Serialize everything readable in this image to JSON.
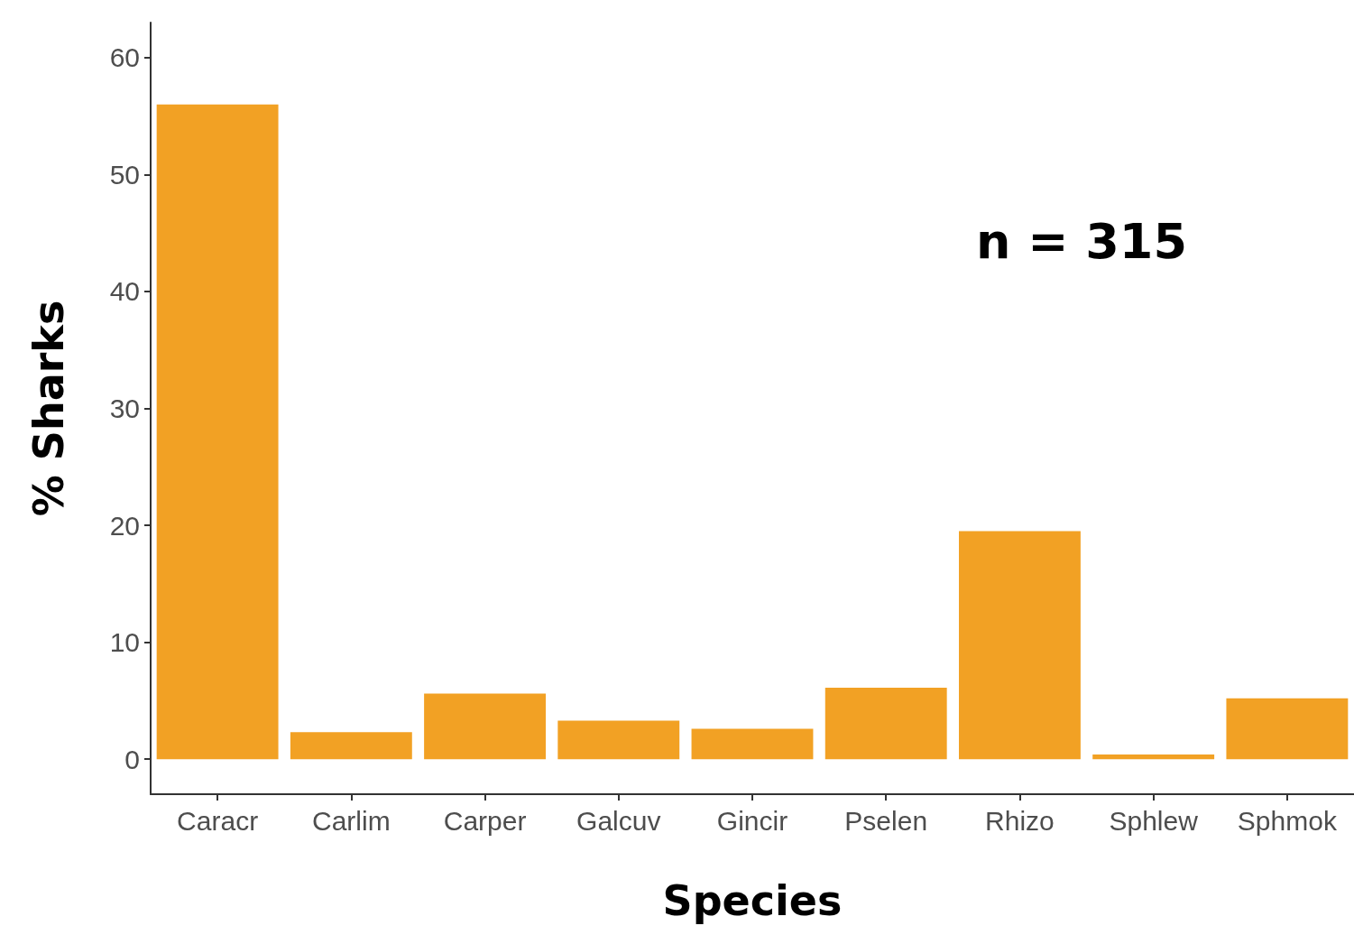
{
  "chart_data": {
    "type": "bar",
    "xlabel": "Species",
    "ylabel": "% Sharks",
    "categories": [
      "Caracr",
      "Carlim",
      "Carper",
      "Galcuv",
      "Gincir",
      "Pselen",
      "Rhizo",
      "Sphlew",
      "Sphmok"
    ],
    "values": [
      56.0,
      2.3,
      5.6,
      3.3,
      2.6,
      6.1,
      19.5,
      0.4,
      5.2
    ],
    "color": "#f2a124",
    "ylim": [
      -3,
      63
    ],
    "yticks": [
      0,
      10,
      20,
      30,
      40,
      50,
      60
    ],
    "grid": false,
    "annotations": [
      "n = 315"
    ]
  }
}
